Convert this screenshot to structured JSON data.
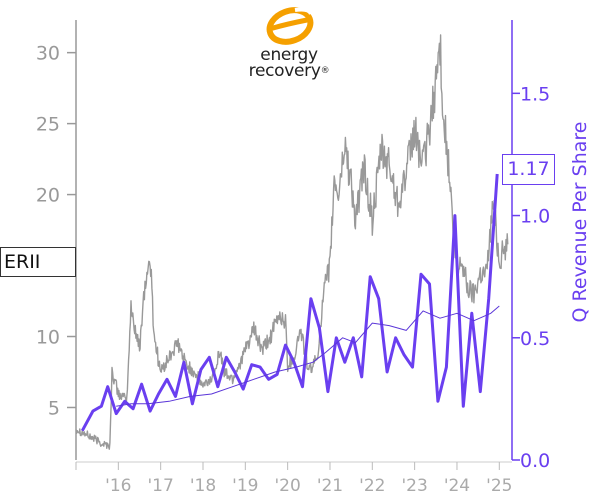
{
  "logo": {
    "line1": "energy",
    "line2": "recovery",
    "mark": "®",
    "icon": "energy-recovery-swirl-logo",
    "color": "#f5a000"
  },
  "ticker": "ERII",
  "last_value_label": "1.17",
  "colors": {
    "price": "#999999",
    "revenue": "#6a3ff0",
    "trend": "#5a35d8",
    "axis_left": "#999999",
    "axis_right": "#6a3ff0"
  },
  "chart_data": {
    "type": "line",
    "title": "",
    "xlabel": "",
    "ylabel_left": "",
    "ylabel_right": "Q Revenue Per Share",
    "x_ticks": [
      "'16",
      "'17",
      "'18",
      "'19",
      "'20",
      "'21",
      "'22",
      "'23",
      "'24",
      "'25"
    ],
    "x_range": [
      2015.0,
      2025.3
    ],
    "y_left_ticks": [
      5,
      10,
      15,
      20,
      25,
      30
    ],
    "y_left_tick_labels": [
      "5",
      "10",
      "",
      "20",
      "25",
      "30"
    ],
    "y_left_range": [
      1.3,
      32.3
    ],
    "y_right_ticks": [
      0.0,
      0.5,
      1.0,
      1.5
    ],
    "y_right_tick_labels": [
      "0.0",
      "0.5",
      "1.0",
      "1.5"
    ],
    "y_right_range": [
      0.0,
      1.8
    ],
    "grid": false,
    "series": [
      {
        "name": "",
        "axis": "left",
        "style": "noisy-line",
        "x": [
          2015.0,
          2015.3,
          2015.6,
          2015.8,
          2015.85,
          2016.0,
          2016.2,
          2016.3,
          2016.5,
          2016.6,
          2016.75,
          2016.85,
          2017.0,
          2017.2,
          2017.4,
          2017.6,
          2017.8,
          2018.0,
          2018.2,
          2018.4,
          2018.5,
          2018.7,
          2018.85,
          2019.0,
          2019.2,
          2019.4,
          2019.6,
          2019.8,
          2019.95,
          2020.0,
          2020.15,
          2020.3,
          2020.5,
          2020.7,
          2020.85,
          2021.0,
          2021.1,
          2021.2,
          2021.35,
          2021.5,
          2021.6,
          2021.8,
          2022.0,
          2022.2,
          2022.4,
          2022.6,
          2022.8,
          2023.0,
          2023.2,
          2023.4,
          2023.5,
          2023.6,
          2023.7,
          2023.8,
          2023.9,
          2024.0,
          2024.1,
          2024.25,
          2024.4,
          2024.55,
          2024.7,
          2024.85,
          2025.0,
          2025.2
        ],
        "values": [
          3.5,
          3.0,
          2.5,
          2.3,
          7.5,
          6.0,
          5.5,
          12.0,
          9.0,
          13.0,
          15.5,
          10.0,
          7.5,
          8.5,
          9.5,
          8.0,
          7.5,
          6.5,
          7.0,
          9.0,
          7.5,
          7.0,
          8.0,
          9.0,
          10.5,
          9.0,
          10.0,
          11.5,
          11.0,
          8.0,
          8.5,
          10.5,
          7.5,
          8.5,
          13.0,
          15.0,
          21.0,
          20.0,
          23.5,
          21.0,
          18.0,
          22.0,
          18.0,
          23.0,
          22.0,
          19.5,
          21.5,
          24.5,
          22.0,
          25.5,
          28.0,
          30.5,
          25.0,
          22.0,
          18.0,
          14.0,
          15.5,
          13.5,
          13.0,
          14.5,
          14.5,
          19.5,
          15.5,
          16.5
        ]
      },
      {
        "name": "",
        "axis": "right",
        "style": "bold-line",
        "x": [
          2015.15,
          2015.4,
          2015.6,
          2015.75,
          2015.95,
          2016.15,
          2016.35,
          2016.55,
          2016.75,
          2016.95,
          2017.15,
          2017.35,
          2017.55,
          2017.75,
          2017.95,
          2018.15,
          2018.35,
          2018.55,
          2018.75,
          2018.95,
          2019.15,
          2019.35,
          2019.55,
          2019.75,
          2019.95,
          2020.15,
          2020.35,
          2020.55,
          2020.75,
          2020.95,
          2021.15,
          2021.35,
          2021.55,
          2021.75,
          2021.95,
          2022.15,
          2022.35,
          2022.55,
          2022.75,
          2022.95,
          2023.15,
          2023.35,
          2023.55,
          2023.75,
          2023.95,
          2024.15,
          2024.35,
          2024.55,
          2024.75,
          2024.95
        ],
        "values": [
          0.12,
          0.2,
          0.22,
          0.3,
          0.19,
          0.24,
          0.21,
          0.31,
          0.2,
          0.27,
          0.33,
          0.26,
          0.4,
          0.23,
          0.37,
          0.42,
          0.3,
          0.42,
          0.36,
          0.29,
          0.39,
          0.38,
          0.33,
          0.35,
          0.47,
          0.4,
          0.3,
          0.66,
          0.54,
          0.28,
          0.5,
          0.4,
          0.5,
          0.34,
          0.75,
          0.66,
          0.36,
          0.5,
          0.43,
          0.38,
          0.76,
          0.72,
          0.24,
          0.38,
          1.0,
          0.22,
          0.6,
          0.28,
          0.66,
          1.17
        ]
      },
      {
        "name": "",
        "axis": "right",
        "style": "thin-line",
        "x": [
          2015.95,
          2016.3,
          2016.7,
          2017.2,
          2017.7,
          2018.2,
          2018.7,
          2019.2,
          2019.7,
          2020.2,
          2020.6,
          2020.9,
          2021.3,
          2021.6,
          2022.0,
          2022.4,
          2022.8,
          2023.2,
          2023.6,
          2024.0,
          2024.4,
          2024.8,
          2025.0
        ],
        "values": [
          0.22,
          0.23,
          0.23,
          0.24,
          0.26,
          0.27,
          0.3,
          0.33,
          0.36,
          0.38,
          0.4,
          0.44,
          0.5,
          0.48,
          0.56,
          0.55,
          0.53,
          0.61,
          0.58,
          0.6,
          0.57,
          0.6,
          0.63
        ]
      }
    ]
  }
}
